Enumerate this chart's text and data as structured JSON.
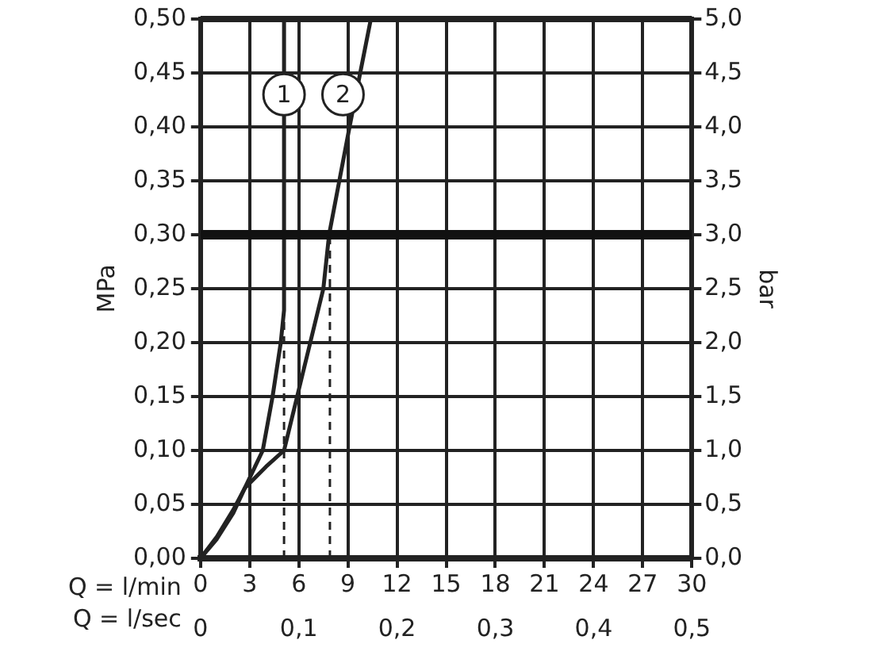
{
  "chart_data": {
    "type": "line",
    "xlabel": "Q = l/min",
    "x2label": "Q = l/sec",
    "ylabel": "MPa",
    "y2label": "bar",
    "xlim": [
      0,
      30
    ],
    "xticks": [
      0,
      3,
      6,
      9,
      12,
      15,
      18,
      21,
      24,
      27,
      30
    ],
    "x2lim": [
      0,
      0.5
    ],
    "x2ticks": [
      0,
      {
        "value": 0.1,
        "label": "0,1"
      },
      {
        "value": 0.2,
        "label": "0,2"
      },
      {
        "value": 0.3,
        "label": "0,3"
      },
      {
        "value": 0.4,
        "label": "0,4"
      },
      {
        "value": 0.5,
        "label": "0,5"
      }
    ],
    "ylim": [
      0,
      0.5
    ],
    "yticks": [
      {
        "value": 0,
        "label": "0,00"
      },
      {
        "value": 0.05,
        "label": "0,05"
      },
      {
        "value": 0.1,
        "label": "0,10"
      },
      {
        "value": 0.15,
        "label": "0,15"
      },
      {
        "value": 0.2,
        "label": "0,20"
      },
      {
        "value": 0.25,
        "label": "0,25"
      },
      {
        "value": 0.3,
        "label": "0,30"
      },
      {
        "value": 0.35,
        "label": "0,35"
      },
      {
        "value": 0.4,
        "label": "0,40"
      },
      {
        "value": 0.45,
        "label": "0,45"
      },
      {
        "value": 0.5,
        "label": "0,50"
      }
    ],
    "y2lim": [
      0,
      5
    ],
    "y2ticks": [
      {
        "value": 0,
        "label": "0,0"
      },
      {
        "value": 0.5,
        "label": "0,5"
      },
      {
        "value": 1,
        "label": "1,0"
      },
      {
        "value": 1.5,
        "label": "1,5"
      },
      {
        "value": 2,
        "label": "2,0"
      },
      {
        "value": 2.5,
        "label": "2,5"
      },
      {
        "value": 3,
        "label": "3,0"
      },
      {
        "value": 3.5,
        "label": "3,5"
      },
      {
        "value": 4,
        "label": "4,0"
      },
      {
        "value": 4.5,
        "label": "4,5"
      },
      {
        "value": 5,
        "label": "5,0"
      }
    ],
    "grid": true,
    "legend": false,
    "marker": "none",
    "line_style": "solid",
    "series": [
      {
        "color": "#222222",
        "x": [
          0,
          1,
          2,
          2.7,
          3.8,
          4.4,
          4.9,
          5.1,
          5.1
        ],
        "values": [
          0,
          0.018,
          0.042,
          0.065,
          0.1,
          0.15,
          0.2,
          0.23,
          0.5
        ]
      },
      {
        "color": "#222222",
        "x": [
          0,
          1,
          2,
          2.7,
          4,
          5.1,
          5.9,
          6.7,
          7.5,
          7.85,
          9.1,
          10.4
        ],
        "values": [
          0,
          0.02,
          0.045,
          0.065,
          0.085,
          0.1,
          0.15,
          0.2,
          0.25,
          0.3,
          0.4,
          0.5
        ]
      },
      {
        "color": "#222222",
        "line_style": "dashed",
        "x": [
          5.1,
          5.1
        ],
        "values": [
          0,
          0.23
        ]
      },
      {
        "color": "#222222",
        "line_style": "dashed",
        "x": [
          7.9,
          7.9
        ],
        "values": [
          0,
          0.3
        ]
      }
    ],
    "ref_lines": [
      {
        "axis": "y",
        "value": 0.3,
        "color": "#111111"
      }
    ],
    "annotations": [
      {
        "text": "1",
        "x": 5.1,
        "y": 0.43
      },
      {
        "text": "2",
        "x": 8.7,
        "y": 0.43
      }
    ]
  }
}
